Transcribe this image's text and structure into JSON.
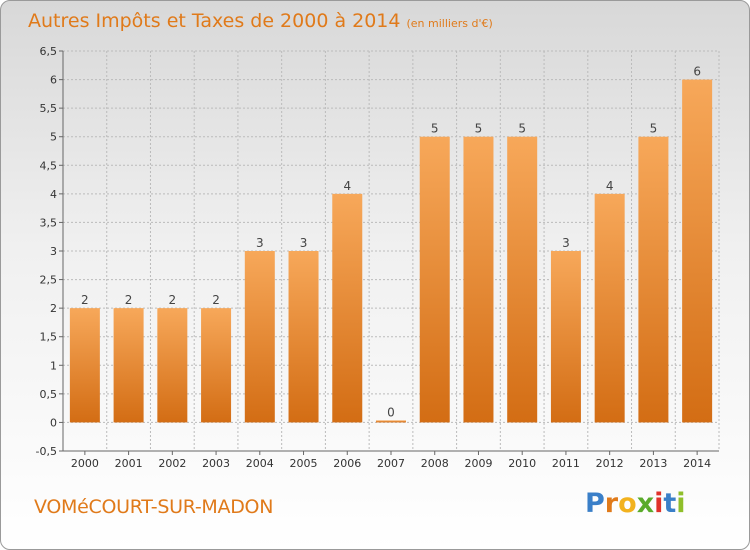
{
  "title": {
    "main": "Autres Impôts et Taxes de 2000 à 2014",
    "unit": "(en milliers d'€)"
  },
  "commune": "VOMéCOURT-SUR-MADON",
  "logo": {
    "text": "Proxiti",
    "letter_colors": [
      "#3a7fc8",
      "#e07a1a",
      "#f2b21e",
      "#5aab2b",
      "#e0312a",
      "#3a7fc8",
      "#8fbf2a"
    ]
  },
  "colors": {
    "title": "#e07a1a",
    "bar_top": "#f7a85a",
    "bar_bottom": "#d36d14",
    "grid": "#bbbbbb",
    "axis_text": "#333333"
  },
  "chart_data": {
    "type": "bar",
    "title": "Autres Impôts et Taxes de 2000 à 2014",
    "xlabel": "",
    "ylabel": "",
    "categories": [
      "2000",
      "2001",
      "2002",
      "2003",
      "2004",
      "2005",
      "2006",
      "2007",
      "2008",
      "2009",
      "2010",
      "2011",
      "2012",
      "2013",
      "2014"
    ],
    "values": [
      2,
      2,
      2,
      2,
      3,
      3,
      4,
      0,
      5,
      5,
      5,
      3,
      4,
      5,
      6
    ],
    "value_labels": [
      "2",
      "2",
      "2",
      "2",
      "3",
      "3",
      "4",
      "0",
      "5",
      "5",
      "5",
      "3",
      "4",
      "5",
      "6"
    ],
    "ylim": [
      -0.5,
      6.5
    ],
    "yticks": [
      -0.5,
      0,
      0.5,
      1,
      1.5,
      2,
      2.5,
      3,
      3.5,
      4,
      4.5,
      5,
      5.5,
      6,
      6.5
    ],
    "ytick_labels": [
      "-0,5",
      "0",
      "0,5",
      "1",
      "1,5",
      "2",
      "2,5",
      "3",
      "3,5",
      "4",
      "4,5",
      "5",
      "5,5",
      "6",
      "6,5"
    ],
    "grid": true
  }
}
